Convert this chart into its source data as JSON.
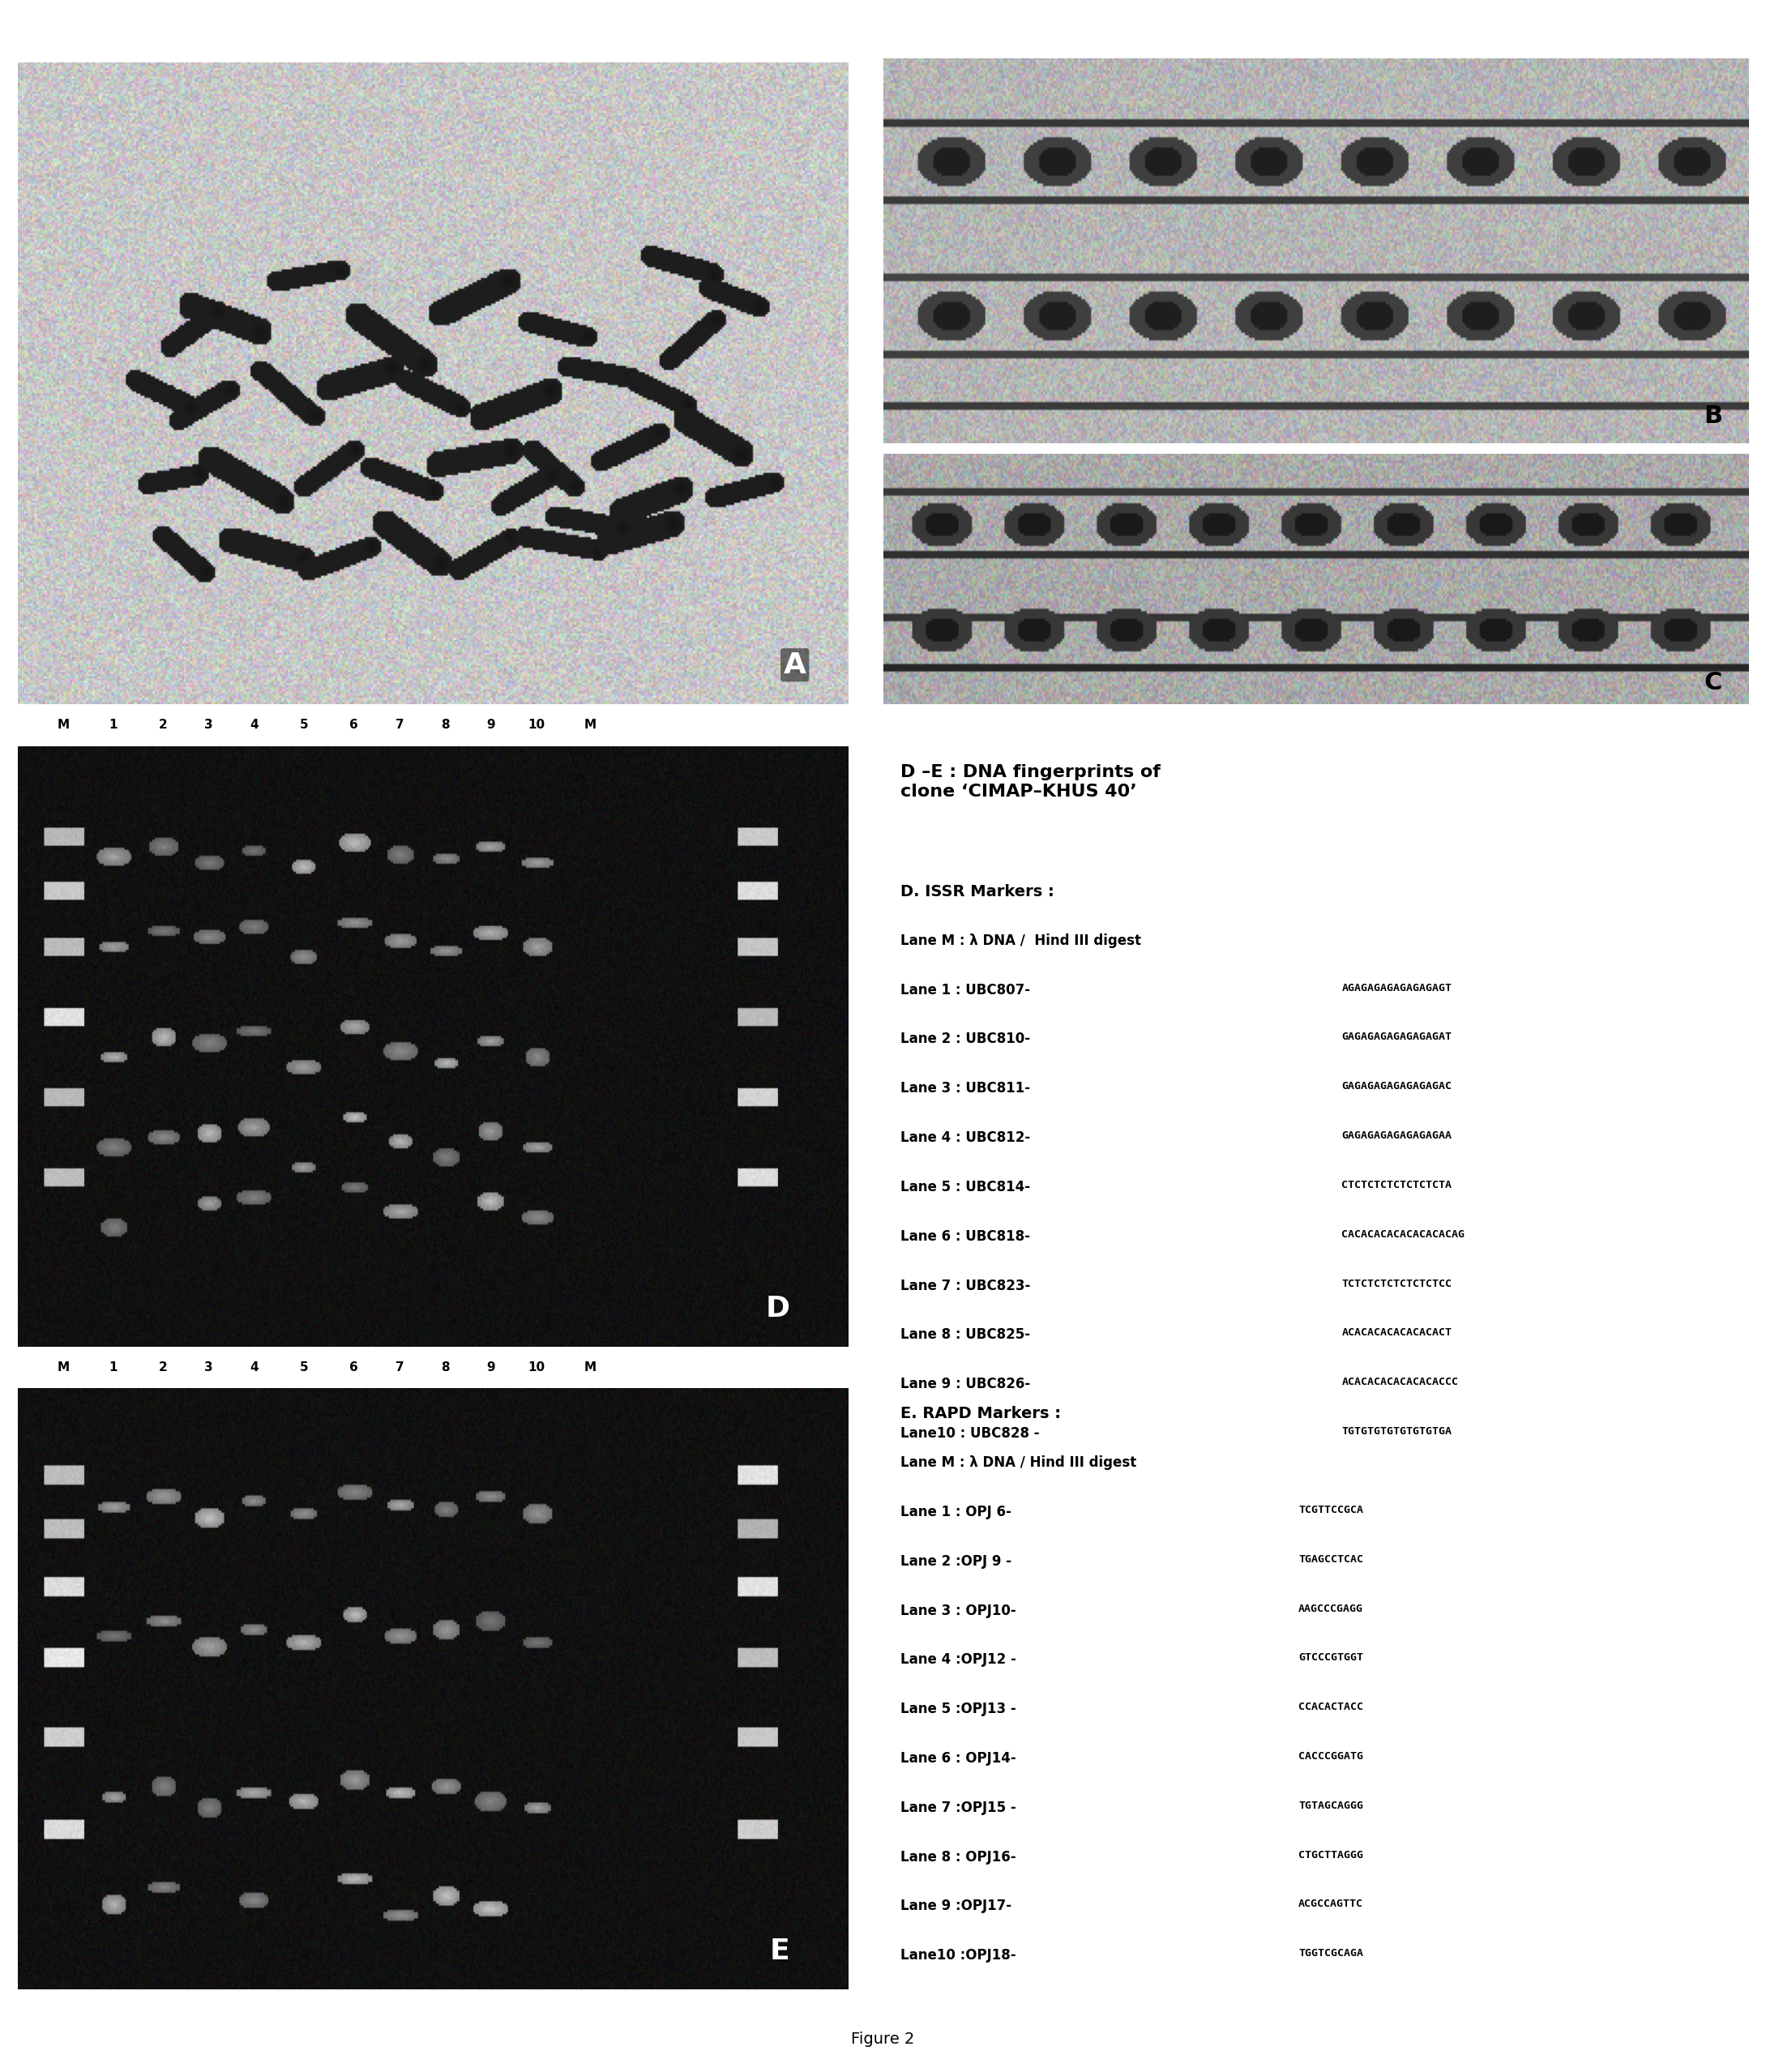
{
  "figure_caption": "Figure 2",
  "title_text": "D –E : DNA fingerprints of\nclone ‘CIMAP–KHUS 40’",
  "issr_header": "D. ISSR Markers :",
  "issr_lane_M": "Lane M : λ DNA /  Hind III digest",
  "issr_lanes": [
    "Lane 1 : UBC807-",
    "Lane 2 : UBC810-",
    "Lane 3 : UBC811-",
    "Lane 4 : UBC812-",
    "Lane 5 : UBC814-",
    "Lane 6 : UBC818-",
    "Lane 7 : UBC823-",
    "Lane 8 : UBC825-",
    "Lane 9 : UBC826-",
    "Lane10 : UBC828 -"
  ],
  "issr_seqs": [
    "AGAGAGAGAGAGAGAGT",
    "GAGAGAGAGAGAGAGAT",
    "GAGAGAGAGAGAGAGAC",
    "GAGAGAGAGAGAGAGAA",
    "CTCTCTCTCTCTCTCTA",
    "CACACACACACACACACAG",
    "TCTCTCTCTCTCTCTCC",
    "ACACACACACACACACT",
    "ACACACACACACACACCC",
    "TGTGTGTGTGTGTGTGA"
  ],
  "rapd_header": "E. RAPD Markers :",
  "rapd_lane_M": "Lane M : λ DNA / Hind III digest",
  "rapd_lanes": [
    "Lane 1 : OPJ 6-",
    "Lane 2 :OPJ 9 -",
    "Lane 3 : OPJ10-",
    "Lane 4 :OPJ12 -",
    "Lane 5 :OPJ13 -",
    "Lane 6 : OPJ14-",
    "Lane 7 :OPJ15 -",
    "Lane 8 : OPJ16-",
    "Lane 9 :OPJ17-",
    "Lane10 :OPJ18-"
  ],
  "rapd_seqs": [
    "TCGTTCCGCA",
    "TGAGCCTCAC",
    "AAGCCCGAGG",
    "GTCCCGTGGT",
    "CCACACTACC",
    "CACCCGGATG",
    "TGTAGCAGGG",
    "CTGCTTAGGG",
    "ACGCCAGTTC",
    "TGGTCGCAGA"
  ],
  "bg_color": "#ffffff",
  "gel_bg": "#111111",
  "text_color": "#000000"
}
